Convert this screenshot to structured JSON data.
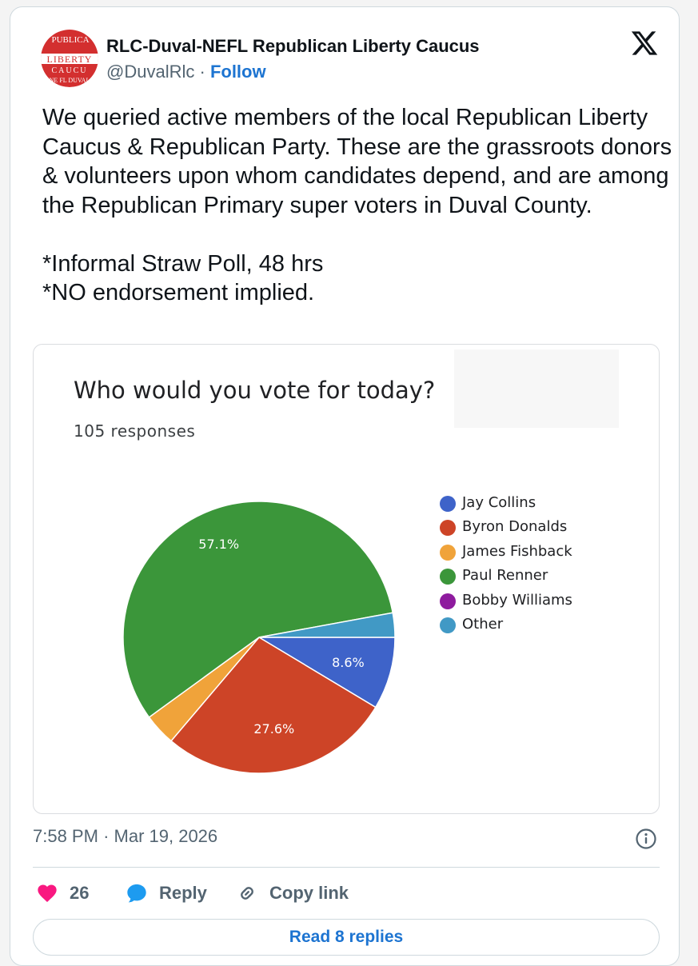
{
  "author": {
    "name": "RLC-Duval-NEFL Republican Liberty Caucus",
    "handle": "@DuvalRlc",
    "separator": "·",
    "follow_label": "Follow",
    "avatar_text": {
      "top": "PUBLICA",
      "middle": "LIBERTY",
      "lower": "CAUCU",
      "bottom": "NE FL DUVAL"
    },
    "avatar_color": "#d32f2f"
  },
  "platform_icon": "x-logo-icon",
  "tweet": {
    "text": "We queried active members of the local Republican Liberty Caucus & Republican Party. These are the grassroots donors & volunteers upon whom candidates depend, and are among the Republican Primary super voters in Duval County.\n\n*Informal Straw Poll, 48 hrs\n*NO endorsement implied."
  },
  "chart_data": {
    "type": "pie",
    "title": "Who would you vote for today?",
    "subtitle": "105 responses",
    "legend_position": "right",
    "slices": [
      {
        "name": "Jay Collins",
        "value": 8.6,
        "color": "#3e63c9",
        "label": "8.6%"
      },
      {
        "name": "Byron Donalds",
        "value": 27.6,
        "color": "#cd4427",
        "label": "27.6%"
      },
      {
        "name": "James Fishback",
        "value": 3.8,
        "color": "#f0a33a",
        "label": ""
      },
      {
        "name": "Paul Renner",
        "value": 57.1,
        "color": "#3b963a",
        "label": "57.1%"
      },
      {
        "name": "Bobby Williams",
        "value": 0,
        "color": "#8e1b9e",
        "label": ""
      },
      {
        "name": "Other",
        "value": 2.9,
        "color": "#4199c5",
        "label": ""
      }
    ]
  },
  "meta": {
    "time": "7:58 PM",
    "separator": "·",
    "date": "Mar 19, 2026"
  },
  "actions": {
    "like_count": "26",
    "reply_label": "Reply",
    "copy_label": "Copy link",
    "like_color": "#f91880",
    "reply_color": "#1d9bf0"
  },
  "read_replies_label": "Read 8 replies"
}
